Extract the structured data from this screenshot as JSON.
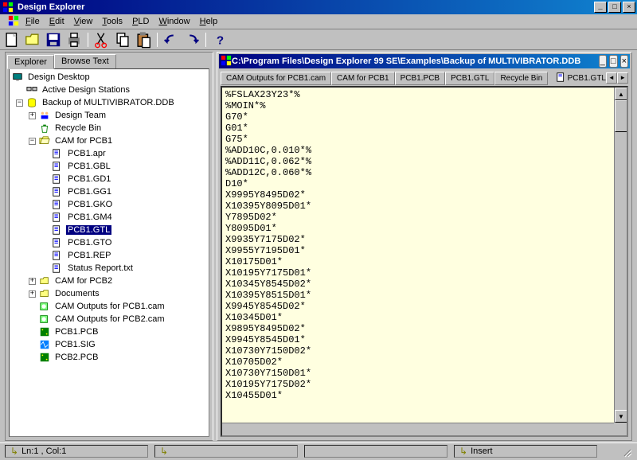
{
  "window": {
    "title": "Design Explorer"
  },
  "menu": [
    "File",
    "Edit",
    "View",
    "Tools",
    "PLD",
    "Window",
    "Help"
  ],
  "leftTabs": [
    "Explorer",
    "Browse Text"
  ],
  "tree": {
    "root": "Design Desktop",
    "ads": "Active Design Stations",
    "backup": "Backup of MULTIVIBRATOR.DDB",
    "designTeam": "Design Team",
    "recycle": "Recycle Bin",
    "cam1": "CAM for PCB1",
    "cam1files": [
      "PCB1.apr",
      "PCB1.GBL",
      "PCB1.GD1",
      "PCB1.GG1",
      "PCB1.GKO",
      "PCB1.GM4",
      "PCB1.GTL",
      "PCB1.GTO",
      "PCB1.REP",
      "Status Report.txt"
    ],
    "cam2": "CAM for PCB2",
    "docs": "Documents",
    "camout1": "CAM Outputs for PCB1.cam",
    "camout2": "CAM Outputs for PCB2.cam",
    "pcb1": "PCB1.PCB",
    "sig": "PCB1.SIG",
    "pcb2": "PCB2.PCB",
    "selected": "PCB1.GTL"
  },
  "rightTitle": "C:\\Program Files\\Design Explorer 99 SE\\Examples\\Backup of MULTIVIBRATOR.DDB",
  "docTabs": [
    "CAM Outputs for PCB1.cam",
    "CAM for PCB1",
    "PCB1.PCB",
    "PCB1.GTL",
    "Recycle Bin"
  ],
  "activeDocTab": "PCB1.GTL",
  "editorLines": [
    "%FSLAX23Y23*%",
    "%MOIN*%",
    "G70*",
    "G01*",
    "G75*",
    "%ADD10C,0.010*%",
    "%ADD11C,0.062*%",
    "%ADD12C,0.060*%",
    "D10*",
    "X9995Y8495D02*",
    "X10395Y8095D01*",
    "Y7895D02*",
    "Y8095D01*",
    "X9935Y7175D02*",
    "X9955Y7195D01*",
    "X10175D01*",
    "X10195Y7175D01*",
    "X10345Y8545D02*",
    "X10395Y8515D01*",
    "X9945Y8545D02*",
    "X10345D01*",
    "X9895Y8495D02*",
    "X9945Y8545D01*",
    "X10730Y7150D02*",
    "X10705D02*",
    "X10730Y7150D01*",
    "X10195Y7175D02*",
    "X10455D01*"
  ],
  "status": {
    "pos": "Ln:1 , Col:1",
    "mode": "Insert"
  },
  "colors": {
    "titlebar_start": "#000080",
    "titlebar_end": "#1084d0",
    "bg": "#c0c0c0",
    "editor_bg": "#ffffe0",
    "sel_bg": "#000080",
    "sel_fg": "#ffffff"
  }
}
